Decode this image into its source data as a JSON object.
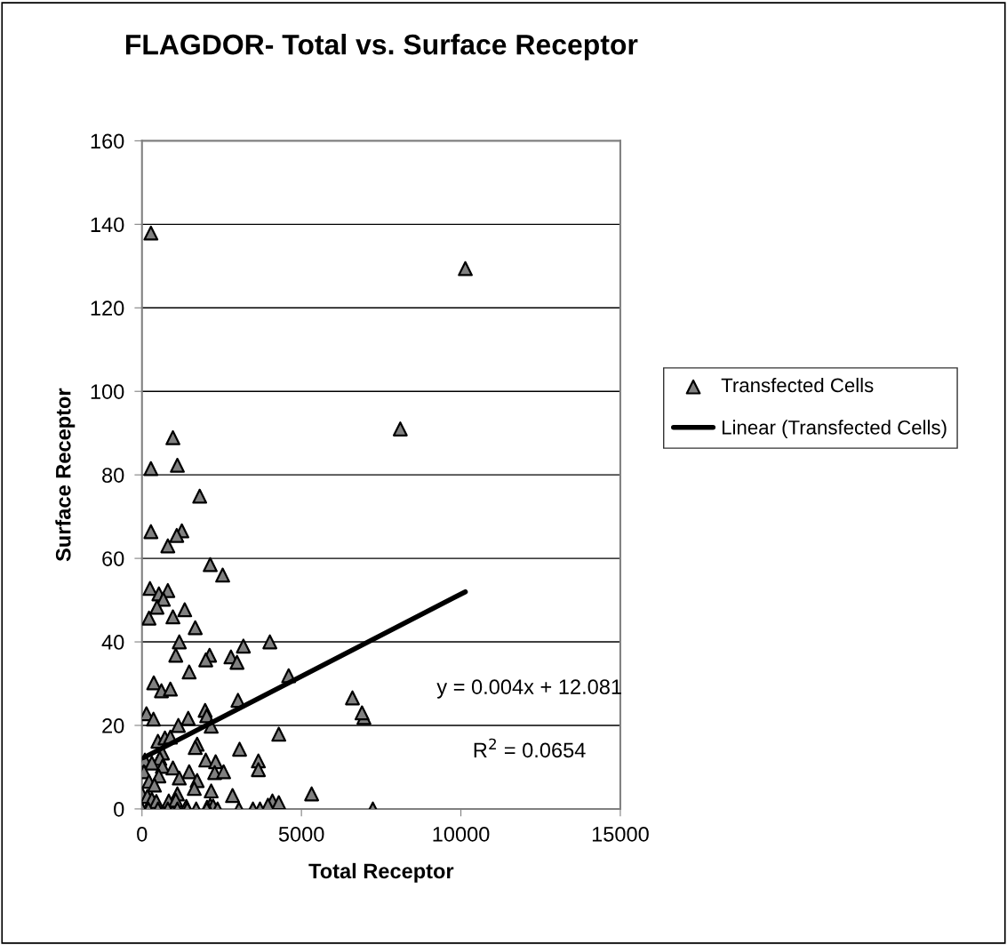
{
  "chart_data": {
    "type": "scatter",
    "title": "FLAGDOR- Total vs. Surface Receptor",
    "xlabel": "Total Receptor",
    "ylabel": "Surface Receptor",
    "xlim": [
      0,
      15000
    ],
    "xticks": [
      0,
      5000,
      10000,
      15000
    ],
    "ylim": [
      0,
      160
    ],
    "yticks": [
      0,
      20,
      40,
      60,
      80,
      100,
      120,
      140,
      160
    ],
    "grid": "y",
    "legend": "right",
    "marker": "triangle",
    "annotations": [
      "y = 0.004x + 12.081",
      "R$^{2}$ = 0.0654"
    ],
    "series": [
      {
        "name": "Transfected Cells",
        "color": "#808080",
        "x": [
          280,
          10140,
          8100,
          970,
          1110,
          280,
          1810,
          280,
          1250,
          1090,
          810,
          2140,
          2530,
          250,
          530,
          810,
          670,
          470,
          1340,
          970,
          220,
          1670,
          1170,
          4010,
          3180,
          1060,
          2120,
          2000,
          2790,
          2980,
          1480,
          4600,
          370,
          610,
          890,
          6600,
          3010,
          6960,
          6900,
          140,
          360,
          1980,
          2030,
          1450,
          1140,
          2170,
          4290,
          500,
          720,
          890,
          1730,
          1670,
          3060,
          640,
          560,
          90,
          310,
          2000,
          2310,
          3650,
          3650,
          640,
          970,
          1480,
          2280,
          2560,
          60,
          530,
          1170,
          1730,
          220,
          390,
          1640,
          2170,
          0,
          5320,
          2840,
          1110,
          170,
          310,
          450,
          4090,
          4290,
          3950,
          840,
          1060,
          2140,
          2230,
          2040,
          1390,
          0,
          200,
          500,
          810,
          1110,
          1420,
          1700,
          2030,
          2370,
          3040,
          3480,
          3700,
          7240
        ],
        "values": [
          137.9,
          129.4,
          91,
          88.9,
          82.3,
          81.5,
          74.9,
          66.4,
          66.6,
          65.5,
          63,
          58.5,
          56,
          52.8,
          51.5,
          52.3,
          50.2,
          48.3,
          47.7,
          46,
          45.7,
          43.4,
          40,
          40,
          39,
          36.8,
          36.8,
          35.7,
          36.4,
          35.1,
          32.8,
          31.9,
          30.2,
          28.3,
          28.7,
          26.6,
          26,
          21.9,
          23,
          22.8,
          21.5,
          23.6,
          22.3,
          21.7,
          20,
          19.8,
          17.9,
          16.2,
          17,
          17.2,
          15.5,
          14.7,
          14.3,
          13.4,
          12.1,
          11.7,
          11,
          11.7,
          11.3,
          11.5,
          9.4,
          10.2,
          9.8,
          8.9,
          8.7,
          8.9,
          8.9,
          7.9,
          7.4,
          6.8,
          6.6,
          5.7,
          4.9,
          4.3,
          3.6,
          3.6,
          3.2,
          3.6,
          3,
          2.3,
          1.8,
          1.9,
          1.5,
          0.9,
          1.9,
          2.1,
          0.9,
          0.7,
          0.4,
          0.6,
          0,
          0,
          0,
          0,
          0,
          0,
          0,
          0,
          0,
          0,
          0,
          0,
          0
        ]
      },
      {
        "name": "Linear (Transfected Cells)",
        "type": "line",
        "color": "#000000",
        "marker": "none",
        "x": [
          60,
          10140
        ],
        "values": [
          12.3,
          52
        ]
      }
    ]
  }
}
